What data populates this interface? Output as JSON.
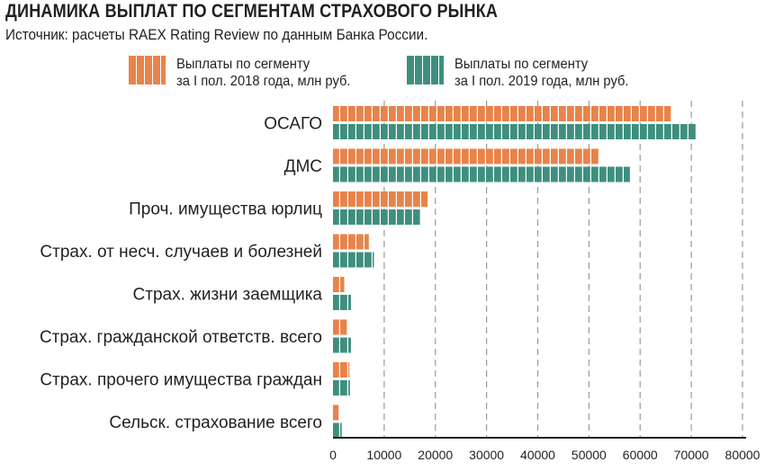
{
  "title": "ДИНАМИКА ВЫПЛАТ ПО СЕГМЕНТАМ СТРАХОВОГО РЫНКА",
  "subtitle": "Источник: расчеты RAEX Rating Review по данным Банка России.",
  "colors": {
    "series_2018": "#e8834a",
    "series_2019": "#3e8f7f",
    "grid": "#9a9a9a",
    "axis": "#231f20"
  },
  "legend": [
    {
      "line1": "Выплаты по сегменту",
      "line2": "за I пол. 2018 года, млн руб."
    },
    {
      "line1": "Выплаты по сегменту",
      "line2": "за I пол. 2019 года, млн руб."
    }
  ],
  "chart_data": {
    "type": "bar",
    "orientation": "horizontal",
    "title": "ДИНАМИКА ВЫПЛАТ ПО СЕГМЕНТАМ СТРАХОВОГО РЫНКА",
    "subtitle": "Источник: расчеты RAEX Rating Review по данным Банка России.",
    "categories": [
      "ОСАГО",
      "ДМС",
      "Проч. имущества юрлиц",
      "Страх. от несч. случаев и болезней",
      "Страх. жизни заемщика",
      "Страх. гражданской ответств. всего",
      "Страх. прочего имущества граждан",
      "Сельск. страхование всего"
    ],
    "series": [
      {
        "name": "Выплаты по сегменту за I пол. 2018 года, млн руб.",
        "values": [
          66000,
          52000,
          18500,
          7000,
          2200,
          2700,
          3200,
          1100
        ]
      },
      {
        "name": "Выплаты по сегменту за I пол. 2019 года, млн руб.",
        "values": [
          71000,
          58000,
          17000,
          8000,
          3500,
          3500,
          3300,
          1700
        ]
      }
    ],
    "xlim": [
      0,
      80000
    ],
    "ticks": [
      0,
      10000,
      20000,
      30000,
      40000,
      50000,
      60000,
      70000,
      80000
    ],
    "tick_labels": [
      "0",
      "10000",
      "20000",
      "30000",
      "40000",
      "50000",
      "60000",
      "70000",
      "80000"
    ],
    "grid": "vertical dashed",
    "legend_position": "top"
  }
}
